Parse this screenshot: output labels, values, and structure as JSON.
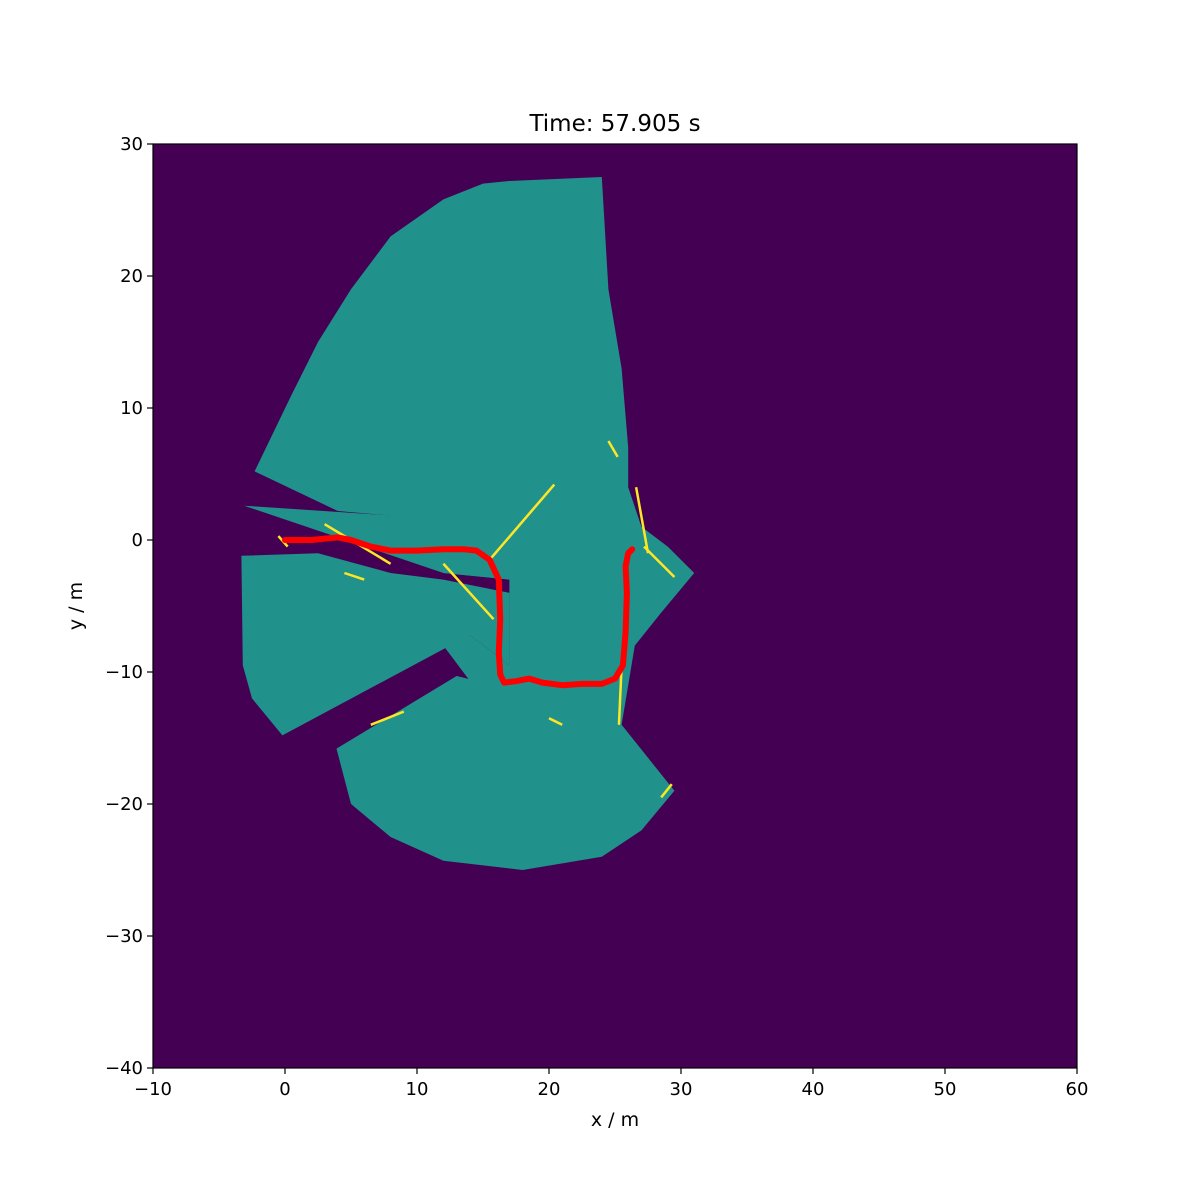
{
  "chart_data": {
    "type": "heatmap",
    "title": "Time: 57.905 s",
    "xlabel": "x / m",
    "ylabel": "y / m",
    "xlim": [
      -10,
      60
    ],
    "ylim": [
      -40,
      30
    ],
    "xticks": [
      -10,
      0,
      10,
      20,
      30,
      40,
      50,
      60
    ],
    "yticks": [
      -40,
      -30,
      -20,
      -10,
      0,
      10,
      20,
      30
    ],
    "xtick_labels": [
      "−10",
      "0",
      "10",
      "20",
      "30",
      "40",
      "50",
      "60"
    ],
    "ytick_labels": [
      "−40",
      "−30",
      "−20",
      "−10",
      "0",
      "10",
      "20",
      "30"
    ],
    "grid": false,
    "colors": {
      "unknown": "#440154",
      "free": "#21918c",
      "occupied": "#fde725",
      "trajectory": "#ff0000"
    },
    "map_regions": [
      {
        "name": "north-fan",
        "class": "free",
        "points": [
          [
            -2.3,
            5.2
          ],
          [
            0.5,
            11
          ],
          [
            2.5,
            15
          ],
          [
            5,
            19
          ],
          [
            8,
            23
          ],
          [
            12,
            25.8
          ],
          [
            15,
            27
          ],
          [
            17,
            27.2
          ],
          [
            24,
            27.5
          ],
          [
            24.5,
            19
          ],
          [
            25.5,
            13
          ],
          [
            26,
            7
          ],
          [
            26,
            4
          ],
          [
            22,
            1
          ],
          [
            17,
            0
          ],
          [
            12,
            1.5
          ],
          [
            4,
            2.2
          ],
          [
            -2.3,
            5.2
          ]
        ]
      },
      {
        "name": "west-arm",
        "class": "free",
        "points": [
          [
            -3.1,
            2.6
          ],
          [
            12,
            1.6
          ],
          [
            17,
            0
          ],
          [
            17,
            -4
          ],
          [
            12,
            -3
          ],
          [
            8,
            -2.5
          ],
          [
            2.5,
            -1
          ],
          [
            -3.3,
            -1.2
          ],
          [
            -3.2,
            -9.5
          ],
          [
            -2.5,
            -12
          ],
          [
            -0.2,
            -14.8
          ],
          [
            14,
            -7.2
          ],
          [
            17,
            -9.5
          ],
          [
            17,
            -3
          ],
          [
            12,
            -2.5
          ],
          [
            -3.1,
            2.6
          ]
        ]
      },
      {
        "name": "central",
        "class": "free",
        "points": [
          [
            12,
            1.5
          ],
          [
            17,
            5
          ],
          [
            24,
            4
          ],
          [
            26,
            4
          ],
          [
            27,
            1
          ],
          [
            29,
            -0.5
          ],
          [
            31,
            -2.5
          ],
          [
            28.5,
            -5.5
          ],
          [
            26.5,
            -8
          ],
          [
            25.5,
            -14
          ],
          [
            20,
            -13
          ],
          [
            15,
            -12
          ],
          [
            12,
            -8
          ],
          [
            14,
            -7.2
          ],
          [
            17,
            -9.5
          ],
          [
            17,
            -3
          ],
          [
            12,
            -2.5
          ],
          [
            12,
            1.5
          ]
        ]
      },
      {
        "name": "south-fan",
        "class": "free",
        "points": [
          [
            3.9,
            -15.8
          ],
          [
            13,
            -10.3
          ],
          [
            20,
            -12
          ],
          [
            25.5,
            -14
          ],
          [
            29.5,
            -19
          ],
          [
            27,
            -22
          ],
          [
            24,
            -24
          ],
          [
            18,
            -25
          ],
          [
            12,
            -24.3
          ],
          [
            8,
            -22.5
          ],
          [
            5,
            -20
          ],
          [
            3.9,
            -15.8
          ]
        ]
      }
    ],
    "obstacles": [
      [
        [
          20.4,
          4.2
        ],
        [
          15.5,
          -1.5
        ]
      ],
      [
        [
          24.5,
          7.5
        ],
        [
          25.2,
          6.3
        ]
      ],
      [
        [
          26.6,
          4
        ],
        [
          27.5,
          -1
        ]
      ],
      [
        [
          27.2,
          -0.5
        ],
        [
          29.5,
          -2.8
        ]
      ],
      [
        [
          25.5,
          -9.5
        ],
        [
          25.3,
          -14
        ]
      ],
      [
        [
          3,
          1.2
        ],
        [
          8,
          -1.8
        ]
      ],
      [
        [
          12,
          -1.8
        ],
        [
          15.8,
          -6
        ]
      ],
      [
        [
          28.5,
          -19.5
        ],
        [
          29.3,
          -18.5
        ]
      ],
      [
        [
          6.5,
          -14
        ],
        [
          9,
          -13
        ]
      ],
      [
        [
          20,
          -13.5
        ],
        [
          21,
          -14
        ]
      ],
      [
        [
          4.5,
          -2.5
        ],
        [
          6,
          -3
        ]
      ],
      [
        [
          0.2,
          -0.5
        ],
        [
          -0.5,
          0.3
        ]
      ]
    ],
    "trajectory": {
      "x": [
        0,
        2,
        4,
        5,
        6.5,
        8,
        10,
        12,
        13.5,
        14.5,
        15.5,
        16.2,
        16.3,
        16.2,
        16.3,
        16.6,
        17.5,
        18.5,
        19.5,
        21,
        22.5,
        24,
        25,
        25.6,
        25.8,
        25.9,
        25.8,
        26,
        26.3
      ],
      "y": [
        0,
        0,
        0.2,
        0,
        -0.5,
        -0.8,
        -0.8,
        -0.7,
        -0.7,
        -0.8,
        -1.5,
        -3,
        -6,
        -8.5,
        -10.2,
        -10.8,
        -10.7,
        -10.5,
        -10.8,
        -11,
        -10.9,
        -10.9,
        -10.5,
        -9.5,
        -7,
        -4,
        -2,
        -1,
        -0.7
      ]
    }
  }
}
